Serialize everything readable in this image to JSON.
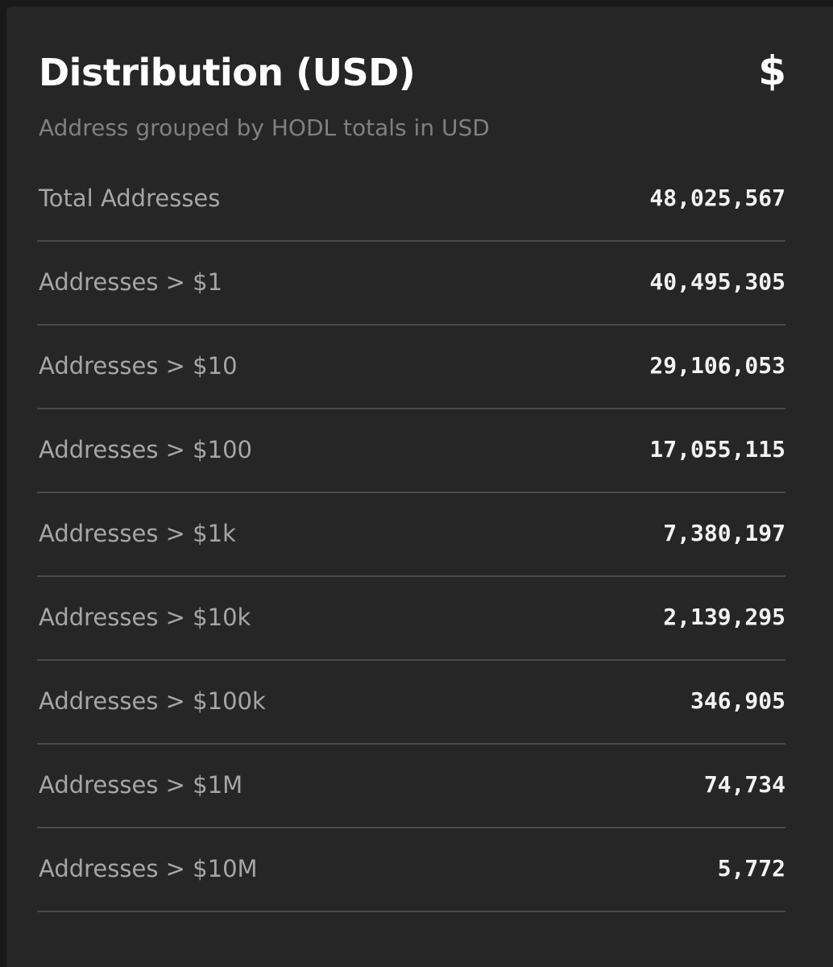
{
  "card": {
    "title": "Distribution (USD)",
    "subtitle": "Address grouped by HODL totals in USD",
    "icon": "dollar-icon",
    "icon_glyph": "$"
  },
  "rows": [
    {
      "label": "Total Addresses",
      "value": "48,025,567"
    },
    {
      "label": "Addresses > $1",
      "value": "40,495,305"
    },
    {
      "label": "Addresses > $10",
      "value": "29,106,053"
    },
    {
      "label": "Addresses > $100",
      "value": "17,055,115"
    },
    {
      "label": "Addresses > $1k",
      "value": "7,380,197"
    },
    {
      "label": "Addresses > $10k",
      "value": "2,139,295"
    },
    {
      "label": "Addresses > $100k",
      "value": "346,905"
    },
    {
      "label": "Addresses > $1M",
      "value": "74,734"
    },
    {
      "label": "Addresses > $10M",
      "value": "5,772"
    }
  ],
  "colors": {
    "background": "#1a1a1a",
    "card": "#262626",
    "title": "#ffffff",
    "subtitle": "#808080",
    "label": "#a6a6a6",
    "value": "#f2f2f2",
    "divider": "#4a4a4a"
  }
}
